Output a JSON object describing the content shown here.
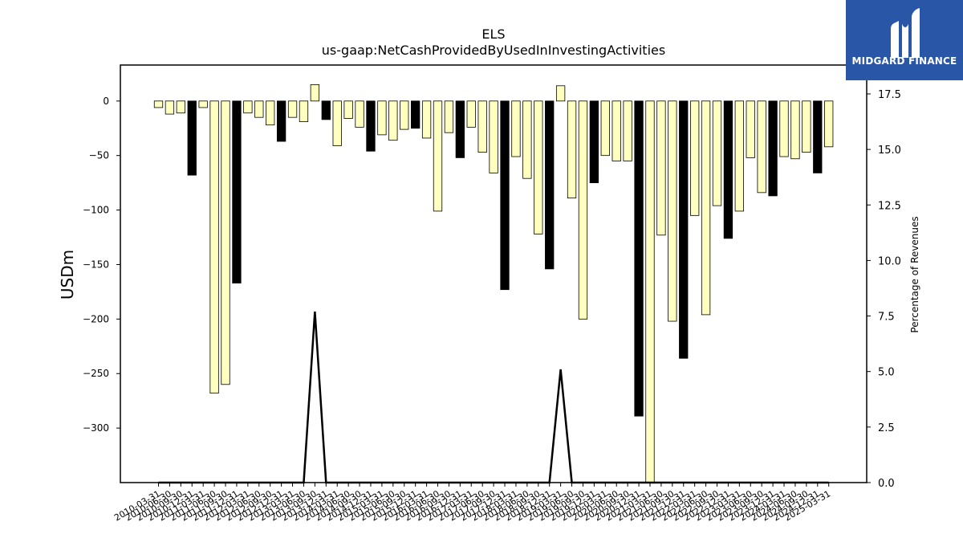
{
  "brand": {
    "name": "MIDGARD FINANCE",
    "bg_color": "#2a56a8"
  },
  "chart_data": {
    "type": "bar",
    "title": "ELS",
    "subtitle": "us-gaap:NetCashProvidedByUsedInInvestingActivities",
    "ylabel": "USDm",
    "y2label": "Percentage of Revenues",
    "ylim": [
      -350,
      33
    ],
    "y2lim": [
      0,
      18.8
    ],
    "yticks": [
      0,
      -50,
      -100,
      -150,
      -200,
      -250,
      -300
    ],
    "y2ticks": [
      0.0,
      2.5,
      5.0,
      7.5,
      10.0,
      12.5,
      15.0,
      17.5
    ],
    "grid": false,
    "bar_colors": {
      "quarter": "#ffffc0",
      "year_end": "#000000"
    },
    "categories": [
      "2010-03-31",
      "2010-06-30",
      "2010-09-30",
      "2010-12-31",
      "2011-03-31",
      "2011-06-30",
      "2011-09-30",
      "2011-12-31",
      "2012-03-31",
      "2012-06-30",
      "2012-09-30",
      "2012-12-31",
      "2013-03-31",
      "2013-06-30",
      "2013-09-30",
      "2013-12-31",
      "2014-03-31",
      "2014-06-30",
      "2014-09-30",
      "2014-12-31",
      "2015-03-31",
      "2015-06-30",
      "2015-09-30",
      "2015-12-31",
      "2016-03-31",
      "2016-06-30",
      "2016-09-30",
      "2016-12-31",
      "2017-03-31",
      "2017-06-30",
      "2017-09-30",
      "2017-12-31",
      "2018-03-31",
      "2018-06-30",
      "2018-09-30",
      "2018-12-31",
      "2019-03-31",
      "2019-06-30",
      "2019-09-30",
      "2019-12-31",
      "2020-03-31",
      "2020-06-30",
      "2020-09-30",
      "2020-12-31",
      "2021-03-31",
      "2021-06-30",
      "2021-09-30",
      "2021-12-31",
      "2022-03-31",
      "2022-06-30",
      "2022-09-30",
      "2022-12-31",
      "2023-03-31",
      "2023-06-30",
      "2023-09-30",
      "2023-12-31",
      "2024-03-31",
      "2024-06-30",
      "2024-09-30",
      "2024-12-31",
      "2025-03-31"
    ],
    "tick_labels": [
      "2010-03-31",
      "2010-06-30",
      "2010-09-30",
      "2010-12-31",
      "2011-03-31",
      "2011-06-30",
      "2011-09-30",
      "2011-12-31",
      "2012-03-31",
      "2012-06-30",
      "2012-09-30",
      "2012-12-31",
      "2013-03-31",
      "2013-06-30",
      "2013-09-30",
      "2013-12-31",
      "2014-03-31",
      "2014-06-30",
      "2014-09-30",
      "2014-12-31",
      "2015-03-31",
      "2015-06-30",
      "2015-09-30",
      "2015-12-31",
      "2016-03-31",
      "2016-06-30",
      "2016-09-30",
      "2016-12-31",
      "2017-03-31",
      "2017-06-30",
      "2017-09-30",
      "2017-12-31",
      "2018-03-31",
      "2018-06-30",
      "2018-09-30",
      "2018-12-31",
      "2019-03-31",
      "2019-06-30",
      "2019-09-30",
      "2019-12-31",
      "2020-03-31",
      "2020-06-30",
      "2020-09-30",
      "2020-12-31",
      "2021-03-31",
      "2021-06-30",
      "2021-09-30",
      "2021-12-31",
      "2022-03-31",
      "2022-06-30",
      "2022-09-30",
      "2022-12-31",
      "2023-03-31",
      "2023-06-30",
      "2023-09-30",
      "2023-12-31",
      "2024-03-31",
      "2024-06-30",
      "2024-09-30",
      "2024-12-31",
      "2025-03-31"
    ],
    "values": [
      -6,
      -12,
      -11,
      -68,
      -6,
      -268,
      -260,
      -167,
      -11,
      -15,
      -22,
      -37,
      -15,
      -19,
      15,
      -17,
      -41,
      -16,
      -24,
      -46,
      -31,
      -36,
      -26,
      -25,
      -34,
      -101,
      -29,
      -52,
      -24,
      -47,
      -66,
      -173,
      -51,
      -71,
      -122,
      -154,
      14,
      -89,
      -200,
      -75,
      -50,
      -55,
      -55,
      -289,
      -360,
      -123,
      -202,
      -236,
      -105,
      -196,
      -96,
      -126,
      -101,
      -52,
      -84,
      -87,
      -51,
      -53,
      -47,
      -66,
      -42
    ],
    "pct_of_revenues": [
      0,
      0,
      0,
      0,
      0,
      0,
      0,
      0,
      0,
      0,
      0,
      0,
      0,
      0,
      7.7,
      0,
      0,
      0,
      0,
      0,
      0,
      0,
      0,
      0,
      0,
      0,
      0,
      0,
      0,
      0,
      0,
      0,
      0,
      0,
      0,
      0,
      5.1,
      0,
      0,
      0,
      0,
      0,
      0,
      0,
      0,
      0,
      0,
      0,
      0,
      0,
      0,
      0,
      0,
      0,
      0,
      0,
      0,
      0,
      0,
      0,
      0
    ]
  }
}
